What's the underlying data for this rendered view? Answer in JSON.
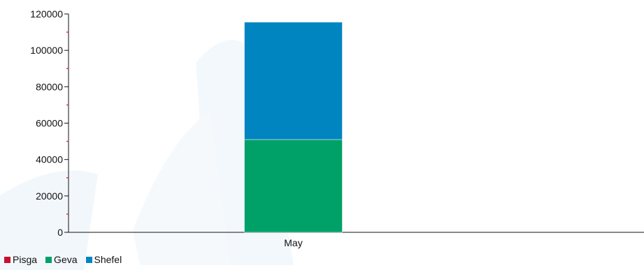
{
  "chart_data": {
    "type": "bar",
    "stacked": true,
    "categories": [
      "May"
    ],
    "series": [
      {
        "name": "Pisga",
        "color": "#c8102e",
        "values": [
          0
        ]
      },
      {
        "name": "Geva",
        "color": "#00a168",
        "values": [
          51000
        ]
      },
      {
        "name": "Shefel",
        "color": "#0085c1",
        "values": [
          64500
        ]
      }
    ],
    "ylim": [
      0,
      120000
    ],
    "y_ticks": [
      0,
      20000,
      40000,
      60000,
      80000,
      100000,
      120000
    ],
    "y_tick_labels": [
      "0",
      "20000",
      "40000",
      "60000",
      "80000",
      "100000",
      "120000"
    ],
    "legend_position": "bottom-left",
    "grid": false
  }
}
